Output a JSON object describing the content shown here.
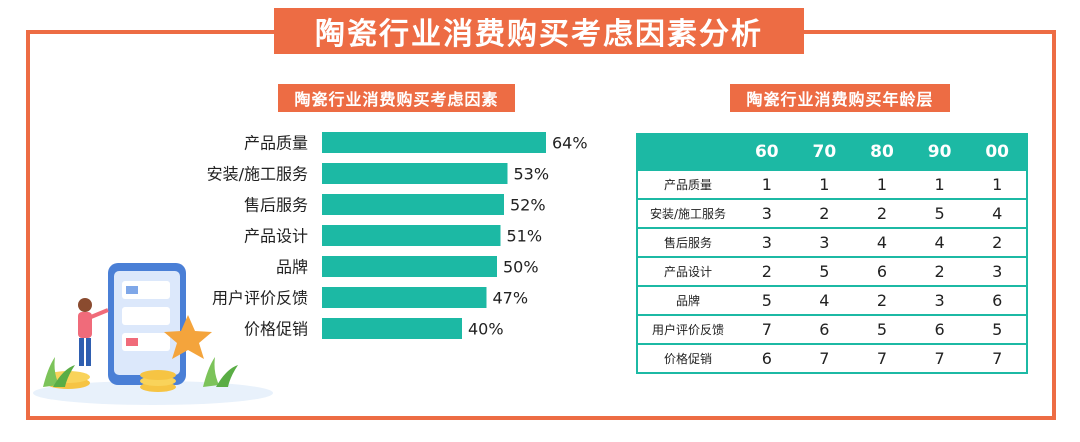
{
  "main_title": "陶瓷行业消费购买考虑因素分析",
  "left_title": "陶瓷行业消费购买考虑因素",
  "right_title": "陶瓷行业消费购买年龄层",
  "colors": {
    "accent": "#ed6c44",
    "bar": "#1cb9a4",
    "table_header": "#1cb9a4"
  },
  "chart_data": [
    {
      "type": "bar",
      "orientation": "horizontal",
      "title": "陶瓷行业消费购买考虑因素",
      "categories": [
        "产品质量",
        "安装/施工服务",
        "售后服务",
        "产品设计",
        "品牌",
        "用户评价反馈",
        "价格促销"
      ],
      "values": [
        64,
        53,
        52,
        51,
        50,
        47,
        40
      ],
      "value_labels": [
        "64%",
        "53%",
        "52%",
        "51%",
        "50%",
        "47%",
        "40%"
      ],
      "unit": "%"
    },
    {
      "type": "table",
      "title": "陶瓷行业消费购买年龄层",
      "columns": [
        "60",
        "70",
        "80",
        "90",
        "00"
      ],
      "rows": [
        {
          "label": "产品质量",
          "values": [
            "1",
            "1",
            "1",
            "1",
            "1"
          ]
        },
        {
          "label": "安装/施工服务",
          "values": [
            "3",
            "2",
            "2",
            "5",
            "4"
          ]
        },
        {
          "label": "售后服务",
          "values": [
            "3",
            "3",
            "4",
            "4",
            "2"
          ]
        },
        {
          "label": "产品设计",
          "values": [
            "2",
            "5",
            "6",
            "2",
            "3"
          ]
        },
        {
          "label": "品牌",
          "values": [
            "5",
            "4",
            "2",
            "3",
            "6"
          ]
        },
        {
          "label": "用户评价反馈",
          "values": [
            "7",
            "6",
            "5",
            "6",
            "5"
          ]
        },
        {
          "label": "价格促销",
          "values": [
            "6",
            "7",
            "7",
            "7",
            "7"
          ]
        }
      ]
    }
  ]
}
